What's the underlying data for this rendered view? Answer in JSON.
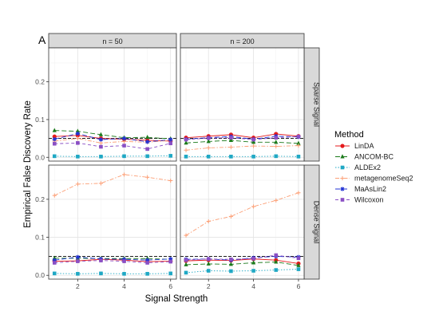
{
  "chart_data": {
    "type": "line",
    "panel_tag": "A",
    "xlabel": "Signal Strength",
    "ylabel": "Empirical False Discovery Rate",
    "x": [
      1,
      2,
      3,
      4,
      5,
      6
    ],
    "x_ticks": [
      2,
      4,
      6
    ],
    "xlim": [
      0.75,
      6.25
    ],
    "ylim": [
      -0.01,
      0.29
    ],
    "y_ticks": [
      0.0,
      0.1,
      0.2
    ],
    "y_tick_labels": [
      "0.0",
      "0.1",
      "0.2"
    ],
    "reference_line": 0.05,
    "grid": true,
    "legend_title": "Method",
    "legend_position": "right",
    "columns": [
      "n = 50",
      "n = 200"
    ],
    "rows": [
      "Sparse Signal",
      "Dense Signal"
    ],
    "methods": [
      {
        "name": "LinDA",
        "color": "#e41a1c",
        "marker": "circle",
        "dash": "solid"
      },
      {
        "name": "ANCOM-BC",
        "color": "#1b7a1b",
        "marker": "triangle",
        "dash": "longdash"
      },
      {
        "name": "ALDEx2",
        "color": "#1fa8c4",
        "marker": "square",
        "dash": "dotted"
      },
      {
        "name": "metagenomeSeq2",
        "color": "#fc9f76",
        "marker": "plus",
        "dash": "dashdot"
      },
      {
        "name": "MaAsLin2",
        "color": "#2233d4",
        "marker": "star",
        "dash": "longdash"
      },
      {
        "name": "Wilcoxon",
        "color": "#8a4fc4",
        "marker": "square",
        "dash": "dashed"
      }
    ],
    "panels": [
      {
        "column": "n = 50",
        "row": "Sparse Signal",
        "series": [
          {
            "name": "LinDA",
            "values": [
              0.055,
              0.058,
              0.05,
              0.048,
              0.045,
              0.043
            ]
          },
          {
            "name": "ANCOM-BC",
            "values": [
              0.071,
              0.069,
              0.06,
              0.052,
              0.053,
              0.049
            ]
          },
          {
            "name": "ALDEx2",
            "values": [
              0.003,
              0.002,
              0.002,
              0.003,
              0.003,
              0.004
            ]
          },
          {
            "name": "metagenomeSeq2",
            "values": [
              0.043,
              0.05,
              0.038,
              0.042,
              0.04,
              0.045
            ]
          },
          {
            "name": "MaAsLin2",
            "values": [
              0.048,
              0.063,
              0.047,
              0.05,
              0.041,
              0.047
            ]
          },
          {
            "name": "Wilcoxon",
            "values": [
              0.036,
              0.038,
              0.028,
              0.031,
              0.022,
              0.037
            ]
          }
        ]
      },
      {
        "column": "n = 200",
        "row": "Sparse Signal",
        "series": [
          {
            "name": "LinDA",
            "values": [
              0.052,
              0.056,
              0.06,
              0.052,
              0.062,
              0.056
            ]
          },
          {
            "name": "ANCOM-BC",
            "values": [
              0.038,
              0.042,
              0.045,
              0.04,
              0.04,
              0.037
            ]
          },
          {
            "name": "ALDEx2",
            "values": [
              0.002,
              0.002,
              0.002,
              0.002,
              0.003,
              0.002
            ]
          },
          {
            "name": "metagenomeSeq2",
            "values": [
              0.019,
              0.025,
              0.027,
              0.03,
              0.029,
              0.031
            ]
          },
          {
            "name": "MaAsLin2",
            "values": [
              0.048,
              0.052,
              0.055,
              0.048,
              0.056,
              0.054
            ]
          },
          {
            "name": "Wilcoxon",
            "values": [
              0.047,
              0.051,
              0.052,
              0.047,
              0.052,
              0.055
            ]
          }
        ]
      },
      {
        "column": "n = 50",
        "row": "Dense Signal",
        "series": [
          {
            "name": "LinDA",
            "values": [
              0.037,
              0.038,
              0.042,
              0.04,
              0.036,
              0.037
            ]
          },
          {
            "name": "ANCOM-BC",
            "values": [
              0.045,
              0.045,
              0.044,
              0.044,
              0.044,
              0.042
            ]
          },
          {
            "name": "ALDEx2",
            "values": [
              0.005,
              0.004,
              0.005,
              0.004,
              0.004,
              0.005
            ]
          },
          {
            "name": "metagenomeSeq2",
            "values": [
              0.21,
              0.24,
              0.242,
              0.265,
              0.258,
              0.249
            ]
          },
          {
            "name": "MaAsLin2",
            "values": [
              0.04,
              0.048,
              0.043,
              0.042,
              0.04,
              0.043
            ]
          },
          {
            "name": "Wilcoxon",
            "values": [
              0.033,
              0.037,
              0.039,
              0.037,
              0.033,
              0.036
            ]
          }
        ]
      },
      {
        "column": "n = 200",
        "row": "Dense Signal",
        "series": [
          {
            "name": "LinDA",
            "values": [
              0.038,
              0.04,
              0.039,
              0.043,
              0.04,
              0.031
            ]
          },
          {
            "name": "ANCOM-BC",
            "values": [
              0.028,
              0.03,
              0.029,
              0.033,
              0.035,
              0.026
            ]
          },
          {
            "name": "ALDEx2",
            "values": [
              0.007,
              0.012,
              0.011,
              0.012,
              0.014,
              0.016
            ]
          },
          {
            "name": "metagenomeSeq2",
            "values": [
              0.105,
              0.142,
              0.155,
              0.181,
              0.197,
              0.217
            ]
          },
          {
            "name": "MaAsLin2",
            "values": [
              0.042,
              0.043,
              0.04,
              0.046,
              0.05,
              0.048
            ]
          },
          {
            "name": "Wilcoxon",
            "values": [
              0.04,
              0.043,
              0.042,
              0.044,
              0.053,
              0.045
            ]
          }
        ]
      }
    ]
  }
}
